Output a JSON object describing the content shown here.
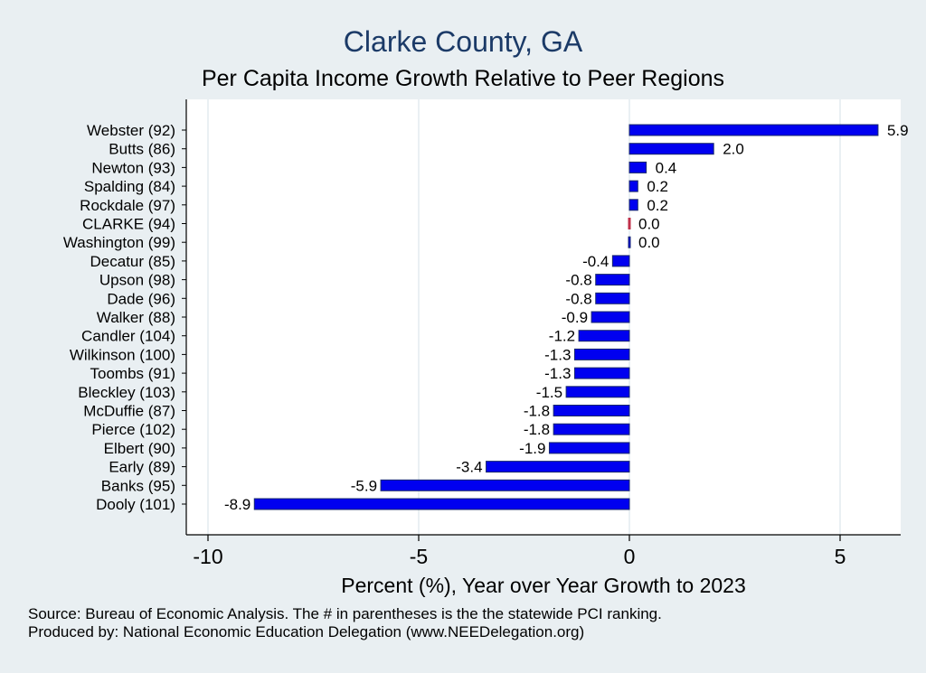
{
  "chart_data": {
    "type": "bar",
    "orientation": "horizontal",
    "title": "Clarke County, GA",
    "subtitle": "Per Capita Income Growth Relative to Peer Regions",
    "xlabel": "Percent (%), Year over Year Growth to 2023",
    "xlim": [
      -10.0,
      6.3
    ],
    "xticks": [
      -10,
      -5,
      0,
      5
    ],
    "xtick_labels": [
      "-10",
      "-5",
      "0",
      "5"
    ],
    "grid": true,
    "categories": [
      "Webster (92)",
      "Butts (86)",
      "Newton (93)",
      "Spalding (84)",
      "Rockdale (97)",
      "CLARKE (94)",
      "Washington (99)",
      "Decatur (85)",
      "Upson (98)",
      "Dade (96)",
      "Walker (88)",
      "Candler (104)",
      "Wilkinson (100)",
      "Toombs (91)",
      "Bleckley (103)",
      "McDuffie (87)",
      "Pierce (102)",
      "Elbert (90)",
      "Early (89)",
      "Banks (95)",
      "Dooly (101)"
    ],
    "values": [
      5.9,
      2.0,
      0.4,
      0.2,
      0.2,
      0.0,
      0.0,
      -0.4,
      -0.8,
      -0.8,
      -0.9,
      -1.2,
      -1.3,
      -1.3,
      -1.5,
      -1.8,
      -1.8,
      -1.9,
      -3.4,
      -5.9,
      -8.9
    ],
    "value_labels": [
      "5.9",
      "2.0",
      "0.4",
      "0.2",
      "0.2",
      "0.0",
      "0.0",
      "-0.4",
      "-0.8",
      "-0.8",
      "-0.9",
      "-1.2",
      "-1.3",
      "-1.3",
      "-1.5",
      "-1.8",
      "-1.8",
      "-1.9",
      "-3.4",
      "-5.9",
      "-8.9"
    ],
    "highlight_category": "CLARKE (94)",
    "bar_color": "#0000f0",
    "bar_outline": "#1a2a6b",
    "highlight_color": "#c0304a"
  },
  "footer": {
    "source": "Source: Bureau of Economic Analysis. The # in parentheses is the the statewide PCI ranking.",
    "produced_by": "Produced by: National Economic Education Delegation (www.NEEDelegation.org)"
  }
}
